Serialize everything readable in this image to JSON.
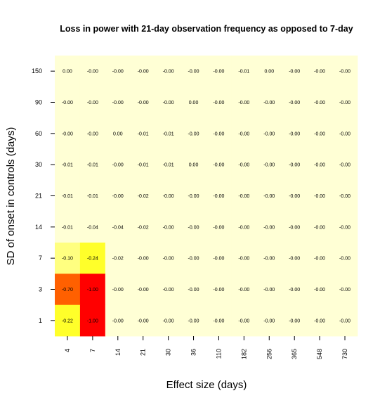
{
  "chart_data": {
    "type": "heatmap",
    "title": "Loss in power with 21-day observation frequency as opposed to 7-day",
    "xlabel": "Effect size (days)",
    "ylabel": "SD of onset in controls (days)",
    "x_categories": [
      "4",
      "7",
      "14",
      "21",
      "30",
      "36",
      "110",
      "182",
      "256",
      "365",
      "548",
      "730"
    ],
    "y_categories": [
      "150",
      "90",
      "60",
      "30",
      "21",
      "14",
      "7",
      "3",
      "1"
    ],
    "values": [
      [
        0.0,
        -0.0,
        -0.0,
        -0.0,
        -0.0,
        -0.0,
        -0.0,
        -0.01,
        0.0,
        -0.0,
        -0.0,
        -0.0
      ],
      [
        -0.0,
        -0.0,
        -0.0,
        -0.0,
        -0.0,
        0.0,
        -0.0,
        -0.0,
        -0.0,
        -0.0,
        -0.0,
        -0.0
      ],
      [
        -0.0,
        -0.0,
        0.0,
        -0.01,
        -0.01,
        -0.0,
        -0.0,
        -0.0,
        -0.0,
        -0.0,
        -0.0,
        -0.0
      ],
      [
        -0.01,
        -0.01,
        -0.0,
        -0.01,
        -0.01,
        0.0,
        -0.0,
        -0.0,
        -0.0,
        -0.0,
        -0.0,
        -0.0
      ],
      [
        -0.01,
        -0.01,
        -0.0,
        -0.02,
        -0.0,
        -0.0,
        -0.0,
        -0.0,
        -0.0,
        -0.0,
        -0.0,
        -0.0
      ],
      [
        -0.01,
        -0.04,
        -0.04,
        -0.02,
        -0.0,
        -0.0,
        -0.0,
        -0.0,
        -0.0,
        -0.0,
        -0.0,
        -0.0
      ],
      [
        -0.1,
        -0.24,
        -0.02,
        -0.0,
        -0.0,
        -0.0,
        -0.0,
        -0.0,
        -0.0,
        -0.0,
        -0.0,
        -0.0
      ],
      [
        -0.7,
        -1.0,
        -0.0,
        -0.0,
        -0.0,
        -0.0,
        -0.0,
        -0.0,
        -0.0,
        -0.0,
        -0.0,
        -0.0
      ],
      [
        -0.22,
        -1.0,
        -0.0,
        -0.0,
        -0.0,
        -0.0,
        -0.0,
        -0.0,
        -0.0,
        -0.0,
        -0.0,
        -0.0
      ]
    ],
    "labels": [
      [
        "0.00",
        "-0.00",
        "-0.00",
        "-0.00",
        "-0.00",
        "-0.00",
        "-0.00",
        "-0.01",
        "0.00",
        "-0.00",
        "-0.00",
        "-0.00"
      ],
      [
        "-0.00",
        "-0.00",
        "-0.00",
        "-0.00",
        "-0.00",
        "0.00",
        "-0.00",
        "-0.00",
        "-0.00",
        "-0.00",
        "-0.00",
        "-0.00"
      ],
      [
        "-0.00",
        "-0.00",
        "0.00",
        "-0.01",
        "-0.01",
        "-0.00",
        "-0.00",
        "-0.00",
        "-0.00",
        "-0.00",
        "-0.00",
        "-0.00"
      ],
      [
        "-0.01",
        "-0.01",
        "-0.00",
        "-0.01",
        "-0.01",
        "0.00",
        "-0.00",
        "-0.00",
        "-0.00",
        "-0.00",
        "-0.00",
        "-0.00"
      ],
      [
        "-0.01",
        "-0.01",
        "-0.00",
        "-0.02",
        "-0.00",
        "-0.00",
        "-0.00",
        "-0.00",
        "-0.00",
        "-0.00",
        "-0.00",
        "-0.00"
      ],
      [
        "-0.01",
        "-0.04",
        "-0.04",
        "-0.02",
        "-0.00",
        "-0.00",
        "-0.00",
        "-0.00",
        "-0.00",
        "-0.00",
        "-0.00",
        "-0.00"
      ],
      [
        "-0.10",
        "-0.24",
        "-0.02",
        "-0.00",
        "-0.00",
        "-0.00",
        "-0.00",
        "-0.00",
        "-0.00",
        "-0.00",
        "-0.00",
        "-0.00"
      ],
      [
        "-0.70",
        "-1.00",
        "-0.00",
        "-0.00",
        "-0.00",
        "-0.00",
        "-0.00",
        "-0.00",
        "-0.00",
        "-0.00",
        "-0.00",
        "-0.00"
      ],
      [
        "-0.22",
        "-1.00",
        "-0.00",
        "-0.00",
        "-0.00",
        "-0.00",
        "-0.00",
        "-0.00",
        "-0.00",
        "-0.00",
        "-0.00",
        "-0.00"
      ]
    ],
    "colors": {
      "background": "#FFFFD5",
      "light_yellow": "#FFFF80",
      "yellow": "#FFFF2A",
      "orange": "#FF6000",
      "red": "#FF0000"
    },
    "grid": false,
    "legend": "none"
  }
}
